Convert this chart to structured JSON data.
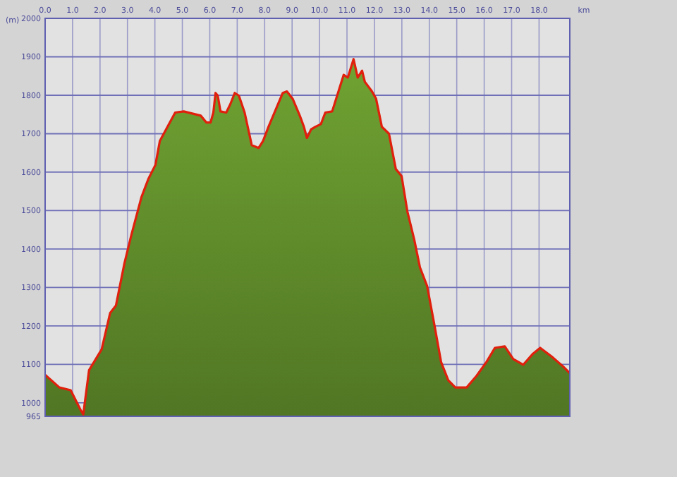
{
  "chart_data": {
    "type": "area",
    "xlabel": "km",
    "ylabel": "(m)",
    "xlim": [
      0,
      19.12
    ],
    "xticks": [
      {
        "value": 0,
        "label": "0.0"
      },
      {
        "value": 1,
        "label": "1.0"
      },
      {
        "value": 2,
        "label": "2.0"
      },
      {
        "value": 3,
        "label": "3.0"
      },
      {
        "value": 4,
        "label": "4.0"
      },
      {
        "value": 5,
        "label": "5.0"
      },
      {
        "value": 6,
        "label": "6.0"
      },
      {
        "value": 7,
        "label": "7.0"
      },
      {
        "value": 8,
        "label": "8.0"
      },
      {
        "value": 9,
        "label": "9.0"
      },
      {
        "value": 10,
        "label": "10.0"
      },
      {
        "value": 11,
        "label": "11.0"
      },
      {
        "value": 12,
        "label": "12.0"
      },
      {
        "value": 13,
        "label": "13.0"
      },
      {
        "value": 14,
        "label": "14.0"
      },
      {
        "value": 15,
        "label": "15.0"
      },
      {
        "value": 16,
        "label": "16.0"
      },
      {
        "value": 17,
        "label": "17.0"
      },
      {
        "value": 18,
        "label": "18.0"
      }
    ],
    "ylim": [
      965,
      2000
    ],
    "yticks": [
      965,
      1000,
      1100,
      1200,
      1300,
      1400,
      1500,
      1600,
      1700,
      1800,
      1900,
      2000
    ],
    "grid": true,
    "series": [
      {
        "color": "#6fa232",
        "x": [
          0,
          0.52,
          0.93,
          1.29,
          1.39,
          1.6,
          2.06,
          2.37,
          2.58,
          2.89,
          3.14,
          3.51,
          3.76,
          4.02,
          4.18,
          4.43,
          4.74,
          5.05,
          5.67,
          5.88,
          6.03,
          6.13,
          6.21,
          6.29,
          6.39,
          6.6,
          6.75,
          6.91,
          7.06,
          7.27,
          7.53,
          7.78,
          7.94,
          8.14,
          8.4,
          8.66,
          8.81,
          9.02,
          9.28,
          9.43,
          9.54,
          9.69,
          9.85,
          10.05,
          10.21,
          10.46,
          10.72,
          10.88,
          11.03,
          11.24,
          11.39,
          11.55,
          11.65,
          11.91,
          12.06,
          12.27,
          12.53,
          12.78,
          12.99,
          13.2,
          13.45,
          13.66,
          13.92,
          14.18,
          14.43,
          14.69,
          14.95,
          15.36,
          15.72,
          16.08,
          16.39,
          16.75,
          17.06,
          17.42,
          17.78,
          18.04,
          18.45,
          18.87,
          19.12
        ],
        "values": [
          1073,
          1040,
          1033,
          982,
          970,
          1085,
          1139,
          1234,
          1253,
          1363,
          1436,
          1535,
          1582,
          1619,
          1681,
          1714,
          1755,
          1758,
          1747,
          1729,
          1729,
          1755,
          1806,
          1799,
          1758,
          1755,
          1777,
          1806,
          1799,
          1755,
          1670,
          1663,
          1681,
          1718,
          1762,
          1806,
          1810,
          1791,
          1747,
          1718,
          1689,
          1711,
          1718,
          1725,
          1755,
          1758,
          1817,
          1853,
          1846,
          1894,
          1846,
          1864,
          1835,
          1810,
          1791,
          1718,
          1700,
          1608,
          1590,
          1498,
          1425,
          1352,
          1304,
          1205,
          1106,
          1059,
          1040,
          1040,
          1070,
          1106,
          1143,
          1147,
          1114,
          1099,
          1128,
          1143,
          1121,
          1095,
          1077
        ]
      }
    ]
  }
}
